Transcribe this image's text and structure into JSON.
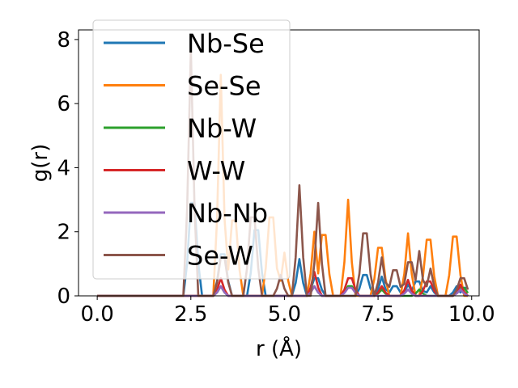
{
  "chart_data": {
    "type": "line",
    "xlabel": "r (Å)",
    "ylabel": "g(r)",
    "xlim": [
      -0.5,
      10.2
    ],
    "ylim": [
      0,
      8.3
    ],
    "xticks": [
      0.0,
      2.5,
      5.0,
      7.5,
      10.0
    ],
    "xtick_labels": [
      "0.0",
      "2.5",
      "5.0",
      "7.5",
      "10.0"
    ],
    "yticks": [
      0,
      2,
      4,
      6,
      8
    ],
    "ytick_labels": [
      "0",
      "2",
      "4",
      "6",
      "8"
    ],
    "grid": false,
    "legend_position": "upper-left",
    "series": [
      {
        "name": "Nb-Se",
        "color": "#1f77b4",
        "peaks": [
          [
            2.55,
            2.9
          ],
          [
            3.35,
            1.3
          ],
          [
            4.25,
            2.05
          ],
          [
            5.4,
            1.15
          ],
          [
            5.85,
            0.55
          ],
          [
            7.15,
            0.65
          ],
          [
            7.6,
            0.6
          ],
          [
            7.95,
            0.3
          ],
          [
            8.3,
            0.35
          ],
          [
            8.55,
            0.45
          ],
          [
            8.9,
            0.3
          ],
          [
            9.6,
            0.3
          ],
          [
            9.85,
            0.25
          ]
        ]
      },
      {
        "name": "Se-Se",
        "color": "#ff7f0e",
        "peaks": [
          [
            3.3,
            6.9
          ],
          [
            3.65,
            2.35
          ],
          [
            4.65,
            2.45
          ],
          [
            5.0,
            1.35
          ],
          [
            5.8,
            2.0
          ],
          [
            6.05,
            1.9
          ],
          [
            6.7,
            3.0
          ],
          [
            7.55,
            1.5
          ],
          [
            8.3,
            1.95
          ],
          [
            8.85,
            1.75
          ],
          [
            9.55,
            1.85
          ]
        ]
      },
      {
        "name": "Nb-W",
        "color": "#2ca02c",
        "peaks": [
          [
            3.3,
            0.3
          ],
          [
            5.8,
            0.3
          ],
          [
            6.75,
            0.3
          ],
          [
            7.6,
            0.2
          ],
          [
            8.6,
            0.2
          ],
          [
            9.75,
            0.25
          ]
        ]
      },
      {
        "name": "W-W",
        "color": "#d62728",
        "peaks": [
          [
            3.3,
            0.55
          ],
          [
            5.8,
            0.75
          ],
          [
            6.75,
            0.55
          ],
          [
            7.6,
            0.3
          ],
          [
            8.3,
            0.5
          ],
          [
            8.85,
            0.45
          ],
          [
            9.7,
            0.35
          ]
        ]
      },
      {
        "name": "Nb-Nb",
        "color": "#9467bd",
        "peaks": [
          [
            3.3,
            0.3
          ],
          [
            5.8,
            0.3
          ],
          [
            6.75,
            0.25
          ],
          [
            8.3,
            0.2
          ],
          [
            9.7,
            0.2
          ]
        ]
      },
      {
        "name": "Se-W",
        "color": "#8c564b",
        "peaks": [
          [
            2.5,
            7.7
          ],
          [
            3.35,
            1.2
          ],
          [
            4.15,
            2.45
          ],
          [
            4.9,
            0.65
          ],
          [
            5.4,
            3.45
          ],
          [
            5.9,
            2.9
          ],
          [
            7.15,
            1.95
          ],
          [
            7.6,
            1.2
          ],
          [
            7.95,
            0.8
          ],
          [
            8.35,
            1.05
          ],
          [
            8.6,
            1.4
          ],
          [
            8.9,
            0.85
          ],
          [
            9.75,
            0.55
          ]
        ]
      }
    ]
  }
}
